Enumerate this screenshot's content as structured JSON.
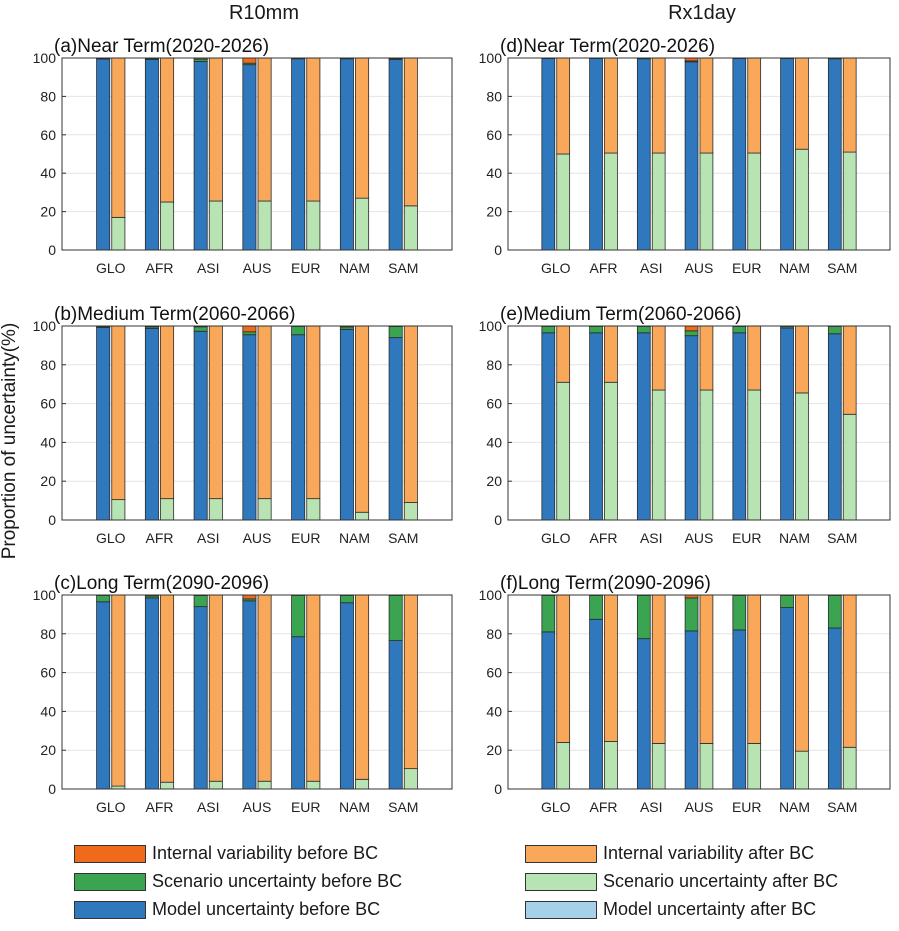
{
  "column_titles": [
    "R10mm",
    "Rx1day"
  ],
  "y_axis_label": "Proportion of uncertainty(%)",
  "colors": {
    "internal_before": "#ef6a1a",
    "scenario_before": "#3aa451",
    "model_before": "#2f78bd",
    "internal_after": "#f9a85a",
    "scenario_after": "#b8e4b4",
    "model_after": "#a6cfea"
  },
  "legend": [
    {
      "key": "internal_before",
      "label": "Internal variability before BC"
    },
    {
      "key": "scenario_before",
      "label": "Scenario uncertainty before BC"
    },
    {
      "key": "model_before",
      "label": "Model uncertainty before BC"
    },
    {
      "key": "internal_after",
      "label": "Internal variability after BC"
    },
    {
      "key": "scenario_after",
      "label": "Scenario uncertainty after BC"
    },
    {
      "key": "model_after",
      "label": "Model uncertainty after BC"
    }
  ],
  "chart_data": [
    {
      "type": "bar",
      "stacked": true,
      "title": "(a)Near Term(2020-2026)",
      "categories": [
        "GLO",
        "AFR",
        "ASI",
        "AUS",
        "EUR",
        "NAM",
        "SAM"
      ],
      "ylim": [
        0,
        100
      ],
      "yticks": [
        0,
        20,
        40,
        60,
        80,
        100
      ],
      "before": {
        "model": [
          99.5,
          99.3,
          98.2,
          96.5,
          99.6,
          99.6,
          99.3
        ],
        "scenario": [
          0.3,
          0.5,
          1.2,
          0.8,
          0.2,
          0.2,
          0.4
        ],
        "internal": [
          0.2,
          0.2,
          0.6,
          2.7,
          0.2,
          0.2,
          0.3
        ]
      },
      "after": {
        "model": [
          0,
          0,
          0,
          0,
          0,
          0,
          0
        ],
        "scenario": [
          17,
          25,
          25.5,
          25.5,
          25.5,
          27,
          23
        ],
        "internal": [
          83,
          75,
          74.5,
          74.5,
          74.5,
          73,
          77
        ]
      }
    },
    {
      "type": "bar",
      "stacked": true,
      "title": "(b)Medium Term(2060-2066)",
      "categories": [
        "GLO",
        "AFR",
        "ASI",
        "AUS",
        "EUR",
        "NAM",
        "SAM"
      ],
      "ylim": [
        0,
        100
      ],
      "yticks": [
        0,
        20,
        40,
        60,
        80,
        100
      ],
      "before": {
        "model": [
          99.3,
          98.8,
          97.3,
          95.5,
          95.5,
          98.3,
          94
        ],
        "scenario": [
          0.5,
          0.8,
          2.3,
          1.5,
          4.3,
          1.2,
          5.7
        ],
        "internal": [
          0.2,
          0.4,
          0.4,
          3,
          0.2,
          0.5,
          0.3
        ]
      },
      "after": {
        "model": [
          0,
          0,
          0,
          0,
          0,
          0,
          0
        ],
        "scenario": [
          10.5,
          11,
          11,
          11,
          11,
          4,
          9
        ],
        "internal": [
          89.5,
          89,
          89,
          89,
          89,
          96,
          91
        ]
      }
    },
    {
      "type": "bar",
      "stacked": true,
      "title": "(c)Long Term(2090-2096)",
      "categories": [
        "GLO",
        "AFR",
        "ASI",
        "AUS",
        "EUR",
        "NAM",
        "SAM"
      ],
      "ylim": [
        0,
        100
      ],
      "yticks": [
        0,
        20,
        40,
        60,
        80,
        100
      ],
      "before": {
        "model": [
          96.5,
          98.5,
          94,
          97,
          78.5,
          96,
          76.5
        ],
        "scenario": [
          3.3,
          1,
          5.7,
          1,
          21.3,
          3.8,
          23.3
        ],
        "internal": [
          0.2,
          0.5,
          0.3,
          2,
          0.2,
          0.2,
          0.2
        ]
      },
      "after": {
        "model": [
          0,
          0,
          0,
          0,
          0,
          0,
          0
        ],
        "scenario": [
          1.5,
          3.5,
          4,
          4,
          4,
          5,
          10.5
        ],
        "internal": [
          98.5,
          96.5,
          96,
          96,
          96,
          95,
          89.5
        ]
      }
    },
    {
      "type": "bar",
      "stacked": true,
      "title": "(d)Near Term(2020-2026)",
      "categories": [
        "GLO",
        "AFR",
        "ASI",
        "AUS",
        "EUR",
        "NAM",
        "SAM"
      ],
      "ylim": [
        0,
        100
      ],
      "yticks": [
        0,
        20,
        40,
        60,
        80,
        100
      ],
      "before": {
        "model": [
          99.7,
          99.7,
          99.6,
          98,
          99.7,
          99.7,
          99.6
        ],
        "scenario": [
          0.2,
          0.2,
          0.2,
          0.5,
          0.2,
          0.2,
          0.2
        ],
        "internal": [
          0.1,
          0.1,
          0.2,
          1.5,
          0.1,
          0.1,
          0.2
        ]
      },
      "after": {
        "model": [
          0,
          0,
          0,
          0,
          0,
          0,
          0
        ],
        "scenario": [
          50,
          50.5,
          50.5,
          50.5,
          50.5,
          52.5,
          51
        ],
        "internal": [
          50,
          49.5,
          49.5,
          49.5,
          49.5,
          47.5,
          49
        ]
      }
    },
    {
      "type": "bar",
      "stacked": true,
      "title": "(e)Medium Term(2060-2066)",
      "categories": [
        "GLO",
        "AFR",
        "ASI",
        "AUS",
        "EUR",
        "NAM",
        "SAM"
      ],
      "ylim": [
        0,
        100
      ],
      "yticks": [
        0,
        20,
        40,
        60,
        80,
        100
      ],
      "before": {
        "model": [
          96.5,
          96.5,
          96.5,
          95,
          96.5,
          99,
          96
        ],
        "scenario": [
          3.3,
          3.3,
          3.3,
          2.5,
          3.3,
          0.8,
          3.8
        ],
        "internal": [
          0.2,
          0.2,
          0.2,
          2.5,
          0.2,
          0.2,
          0.2
        ]
      },
      "after": {
        "model": [
          0,
          0,
          0,
          0,
          0,
          0,
          0
        ],
        "scenario": [
          71,
          71,
          67,
          67,
          67,
          65.5,
          54.5
        ],
        "internal": [
          29,
          29,
          33,
          33,
          33,
          34.5,
          45.5
        ]
      }
    },
    {
      "type": "bar",
      "stacked": true,
      "title": "(f)Long Term(2090-2096)",
      "categories": [
        "GLO",
        "AFR",
        "ASI",
        "AUS",
        "EUR",
        "NAM",
        "SAM"
      ],
      "ylim": [
        0,
        100
      ],
      "yticks": [
        0,
        20,
        40,
        60,
        80,
        100
      ],
      "before": {
        "model": [
          81,
          87.5,
          77.5,
          81.5,
          82,
          93.5,
          83
        ],
        "scenario": [
          18.8,
          12.3,
          22.3,
          17,
          17.8,
          6.3,
          16.8
        ],
        "internal": [
          0.2,
          0.2,
          0.2,
          1.5,
          0.2,
          0.2,
          0.2
        ]
      },
      "after": {
        "model": [
          0,
          0,
          0,
          0,
          0,
          0,
          0
        ],
        "scenario": [
          24,
          24.5,
          23.5,
          23.5,
          23.5,
          19.5,
          21.5
        ],
        "internal": [
          76,
          75.5,
          76.5,
          76.5,
          76.5,
          80.5,
          78.5
        ]
      }
    }
  ]
}
